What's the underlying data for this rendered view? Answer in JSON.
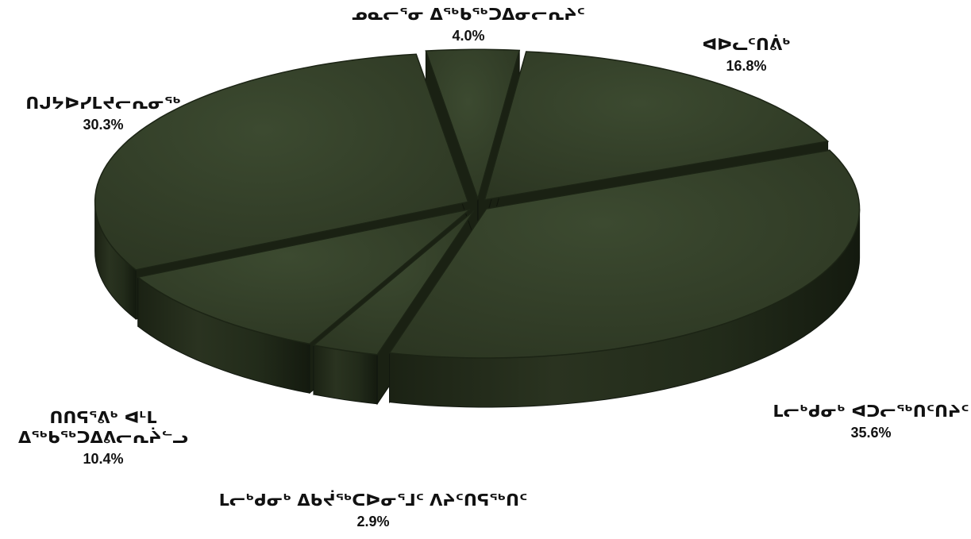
{
  "chart_data": {
    "type": "pie",
    "style": "3d-exploded",
    "color": "#333d28",
    "slices": [
      {
        "label": "ᓄᓇᓕᕐᓂ ᐃᖅᑲᖅᑐᐃᓂᓕᕆᔨᑦ",
        "value": 4.0,
        "pct_text": "4.0%"
      },
      {
        "label": "ᐊᐅᓚᑦᑎᕖᒃ",
        "value": 16.8,
        "pct_text": "16.8%"
      },
      {
        "label": "ᒪᓕᒃᑯᓂᒃ ᐊᑐᓕᖅᑎᑦᑎᔨᑦ",
        "value": 35.6,
        "pct_text": "35.6%"
      },
      {
        "label": "ᒪᓕᒃᑯᓂᒃ ᐃᑲᔫᖅᑕᐅᓂᕐᒧᑦ ᐱᔨᑦᑎᕋᖅᑎᑦ",
        "value": 2.9,
        "pct_text": "2.9%"
      },
      {
        "label": "ᑎᑎᕋᕐᕕᒃ ᐊᒻᒪ ᐃᖅᑲᖅᑐᐃᕕᓕᕆᔩᓪᓗ",
        "value": 10.4,
        "pct_text": "10.4%"
      },
      {
        "label": "ᑎᒍᔭᐅᓯᒪᔪᓕᕆᓂᖅ",
        "value": 30.3,
        "pct_text": "30.3%"
      }
    ]
  }
}
